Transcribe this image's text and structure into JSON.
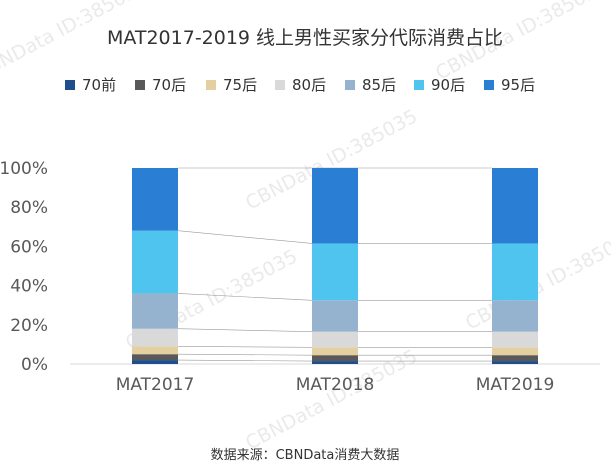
{
  "watermark": "CBNData ID:385035",
  "source": "数据来源：CBNData消费大数据",
  "chart_data": {
    "type": "bar",
    "stacked": true,
    "title": "MAT2017-2019 线上男性买家分代际消费占比",
    "categories": [
      "MAT2017",
      "MAT2018",
      "MAT2019"
    ],
    "ylim": [
      0,
      100
    ],
    "yticks": [
      "0%",
      "20%",
      "40%",
      "60%",
      "80%",
      "100%"
    ],
    "legend_position": "top",
    "series": [
      {
        "name": "70前",
        "color": "#1f4e8c",
        "values": [
          2,
          1.5,
          1.5
        ]
      },
      {
        "name": "70后",
        "color": "#595959",
        "values": [
          3,
          3,
          3
        ]
      },
      {
        "name": "75后",
        "color": "#e3cfa0",
        "values": [
          4,
          4,
          4
        ]
      },
      {
        "name": "80后",
        "color": "#d9d9d9",
        "values": [
          9,
          8,
          8
        ]
      },
      {
        "name": "85后",
        "color": "#95b3cf",
        "values": [
          18,
          16,
          16
        ]
      },
      {
        "name": "90后",
        "color": "#4fc4ee",
        "values": [
          32,
          29,
          29
        ]
      },
      {
        "name": "95后",
        "color": "#2a7fd4",
        "values": [
          32,
          38.5,
          38.5
        ]
      }
    ]
  }
}
